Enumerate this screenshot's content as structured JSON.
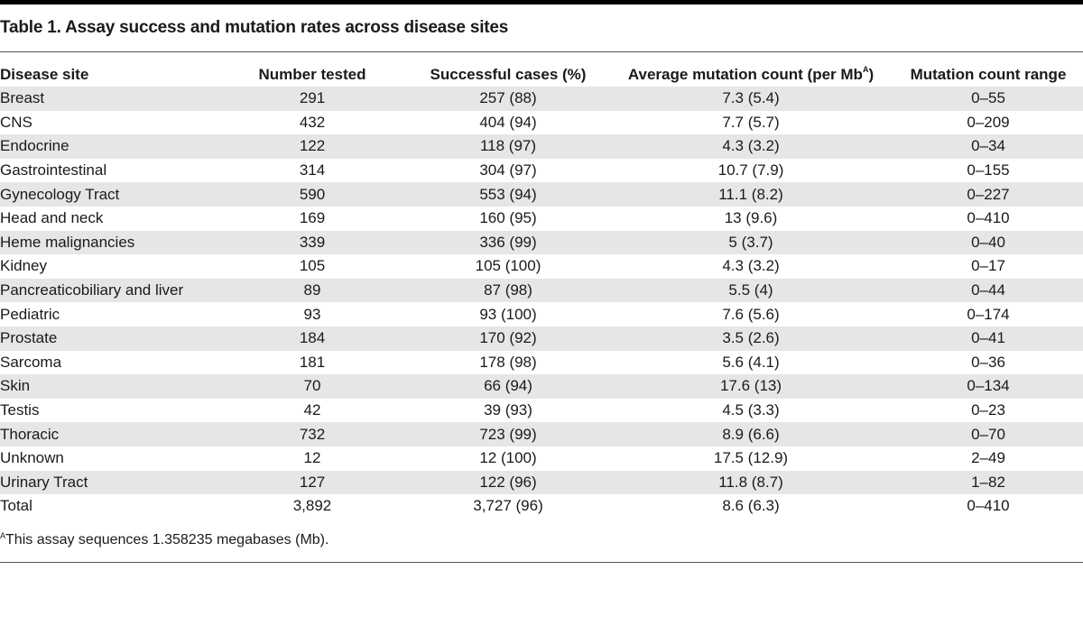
{
  "table": {
    "caption": "Table 1. Assay success and mutation rates across disease sites",
    "headers": {
      "disease_site": "Disease site",
      "number_tested": "Number tested",
      "successful_cases": "Successful cases (%)",
      "avg_mutation_prefix": "Average mutation count (per Mb",
      "avg_mutation_sup": "A",
      "avg_mutation_suffix": ")",
      "mutation_range": "Mutation count range"
    },
    "rows": [
      {
        "site": "Breast",
        "tested": "291",
        "success": "257 (88)",
        "avg": "7.3 (5.4)",
        "range": "0–55"
      },
      {
        "site": "CNS",
        "tested": "432",
        "success": "404 (94)",
        "avg": "7.7 (5.7)",
        "range": "0–209"
      },
      {
        "site": "Endocrine",
        "tested": "122",
        "success": "118 (97)",
        "avg": "4.3 (3.2)",
        "range": "0–34"
      },
      {
        "site": "Gastrointestinal",
        "tested": "314",
        "success": "304 (97)",
        "avg": "10.7 (7.9)",
        "range": "0–155"
      },
      {
        "site": "Gynecology Tract",
        "tested": "590",
        "success": "553 (94)",
        "avg": "11.1 (8.2)",
        "range": "0–227"
      },
      {
        "site": "Head and neck",
        "tested": "169",
        "success": "160 (95)",
        "avg": "13 (9.6)",
        "range": "0–410"
      },
      {
        "site": "Heme malignancies",
        "tested": "339",
        "success": "336 (99)",
        "avg": "5 (3.7)",
        "range": "0–40"
      },
      {
        "site": "Kidney",
        "tested": "105",
        "success": "105 (100)",
        "avg": "4.3 (3.2)",
        "range": "0–17"
      },
      {
        "site": "Pancreaticobiliary and liver",
        "tested": "89",
        "success": "87 (98)",
        "avg": "5.5 (4)",
        "range": "0–44"
      },
      {
        "site": "Pediatric",
        "tested": "93",
        "success": "93 (100)",
        "avg": "7.6 (5.6)",
        "range": "0–174"
      },
      {
        "site": "Prostate",
        "tested": "184",
        "success": "170 (92)",
        "avg": "3.5 (2.6)",
        "range": "0–41"
      },
      {
        "site": "Sarcoma",
        "tested": "181",
        "success": "178 (98)",
        "avg": "5.6 (4.1)",
        "range": "0–36"
      },
      {
        "site": "Skin",
        "tested": "70",
        "success": "66 (94)",
        "avg": "17.6 (13)",
        "range": "0–134"
      },
      {
        "site": "Testis",
        "tested": "42",
        "success": "39 (93)",
        "avg": "4.5 (3.3)",
        "range": "0–23"
      },
      {
        "site": "Thoracic",
        "tested": "732",
        "success": "723 (99)",
        "avg": "8.9 (6.6)",
        "range": "0–70"
      },
      {
        "site": "Unknown",
        "tested": "12",
        "success": "12 (100)",
        "avg": "17.5 (12.9)",
        "range": "2–49"
      },
      {
        "site": "Urinary Tract",
        "tested": "127",
        "success": "122 (96)",
        "avg": "11.8 (8.7)",
        "range": "1–82"
      }
    ],
    "total": {
      "site": "Total",
      "tested": "3,892",
      "success": "3,727 (96)",
      "avg": "8.6 (6.3)",
      "range": "0–410"
    },
    "footnote": {
      "marker": "A",
      "text": "This assay sequences 1.358235 megabases (Mb)."
    }
  }
}
